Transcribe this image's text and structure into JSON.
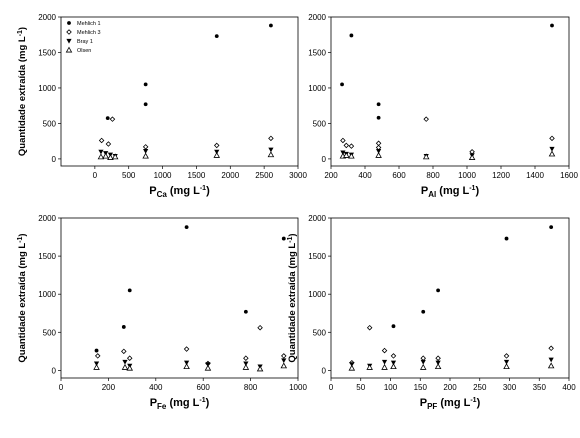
{
  "markers": {
    "Mehlich 1": "dot",
    "Mehlich 3": "diamond",
    "Bray 1": "triangle-down",
    "Olsen": "triangle-up"
  },
  "legend_entries": [
    "Mehlich 1",
    "Mehlich 3",
    "Bray 1",
    "Olsen"
  ],
  "chart_data": [
    {
      "type": "scatter",
      "panel": "top-left",
      "ylabel": "Quantidade extraída (mg L-1)",
      "ylabel_parts": {
        "main": "Quantidade extraída (mg L",
        "sup": "-1",
        "end": ")"
      },
      "xlabel": "PCa (mg L-1)",
      "xlabel_parts": {
        "p": "P",
        "sub": "Ca",
        "mid": " (mg L",
        "sup": "-1",
        "end": ")"
      },
      "xlim": [
        -500,
        3000
      ],
      "ylim": [
        -100,
        2000
      ],
      "xticks": [
        0,
        500,
        1000,
        1500,
        2000,
        2500,
        3000
      ],
      "yticks": [
        0,
        500,
        1000,
        1500,
        2000
      ],
      "legend": "top-left",
      "series": [
        {
          "name": "Mehlich 1",
          "points": [
            [
              190,
              575
            ],
            [
              750,
              1050
            ],
            [
              750,
              770
            ],
            [
              1800,
              1730
            ],
            [
              2600,
              1880
            ]
          ]
        },
        {
          "name": "Mehlich 3",
          "points": [
            [
              100,
              260
            ],
            [
              260,
              560
            ],
            [
              200,
              210
            ],
            [
              750,
              170
            ],
            [
              1800,
              190
            ],
            [
              2600,
              290
            ]
          ]
        },
        {
          "name": "Bray 1",
          "points": [
            [
              90,
              100
            ],
            [
              160,
              80
            ],
            [
              230,
              60
            ],
            [
              300,
              40
            ],
            [
              750,
              110
            ],
            [
              1800,
              100
            ],
            [
              2600,
              130
            ]
          ]
        },
        {
          "name": "Olsen",
          "points": [
            [
              90,
              30
            ],
            [
              160,
              40
            ],
            [
              230,
              20
            ],
            [
              300,
              30
            ],
            [
              750,
              40
            ],
            [
              1800,
              50
            ],
            [
              2600,
              60
            ]
          ]
        }
      ]
    },
    {
      "type": "scatter",
      "panel": "top-right",
      "xlabel": "PAl (mg L-1)",
      "xlabel_parts": {
        "p": "P",
        "sub": "Al",
        "mid": " (mg L",
        "sup": "-1",
        "end": ")"
      },
      "xlim": [
        200,
        1600
      ],
      "ylim": [
        -100,
        2000
      ],
      "xticks": [
        200,
        400,
        600,
        800,
        1000,
        1200,
        1400,
        1600
      ],
      "yticks": [
        0,
        500,
        1000,
        1500,
        2000
      ],
      "series": [
        {
          "name": "Mehlich 1",
          "points": [
            [
              265,
              1050
            ],
            [
              320,
              1740
            ],
            [
              480,
              770
            ],
            [
              480,
              580
            ],
            [
              1500,
              1880
            ]
          ]
        },
        {
          "name": "Mehlich 3",
          "points": [
            [
              270,
              260
            ],
            [
              290,
              190
            ],
            [
              320,
              180
            ],
            [
              480,
              220
            ],
            [
              480,
              160
            ],
            [
              760,
              560
            ],
            [
              1030,
              100
            ],
            [
              1500,
              290
            ]
          ]
        },
        {
          "name": "Bray 1",
          "points": [
            [
              270,
              90
            ],
            [
              290,
              70
            ],
            [
              320,
              60
            ],
            [
              480,
              110
            ],
            [
              760,
              40
            ],
            [
              1030,
              50
            ],
            [
              1500,
              140
            ]
          ]
        },
        {
          "name": "Olsen",
          "points": [
            [
              270,
              40
            ],
            [
              290,
              50
            ],
            [
              320,
              40
            ],
            [
              480,
              50
            ],
            [
              760,
              30
            ],
            [
              1030,
              20
            ],
            [
              1500,
              70
            ]
          ]
        }
      ]
    },
    {
      "type": "scatter",
      "panel": "bottom-left",
      "ylabel": "Quantidade extraída (mg L-1)",
      "ylabel_parts": {
        "main": "Quantidade extraída (mg L",
        "sup": "-1",
        "end": ")"
      },
      "xlabel": "PFe (mg L-1)",
      "xlabel_parts": {
        "p": "P",
        "sub": "Fe",
        "mid": " (mg L",
        "sup": "-1",
        "end": ")"
      },
      "xlim": [
        0,
        1000
      ],
      "ylim": [
        -100,
        2000
      ],
      "xticks": [
        0,
        200,
        400,
        600,
        800,
        1000
      ],
      "yticks": [
        0,
        500,
        1000,
        1500,
        2000
      ],
      "series": [
        {
          "name": "Mehlich 1",
          "points": [
            [
              150,
              260
            ],
            [
              265,
              570
            ],
            [
              290,
              1050
            ],
            [
              530,
              1880
            ],
            [
              780,
              770
            ],
            [
              940,
              1730
            ]
          ]
        },
        {
          "name": "Mehlich 3",
          "points": [
            [
              155,
              190
            ],
            [
              265,
              250
            ],
            [
              290,
              160
            ],
            [
              530,
              280
            ],
            [
              620,
              90
            ],
            [
              780,
              160
            ],
            [
              840,
              560
            ],
            [
              940,
              190
            ]
          ]
        },
        {
          "name": "Bray 1",
          "points": [
            [
              150,
              90
            ],
            [
              270,
              110
            ],
            [
              290,
              60
            ],
            [
              530,
              100
            ],
            [
              620,
              80
            ],
            [
              780,
              90
            ],
            [
              840,
              50
            ],
            [
              940,
              130
            ]
          ]
        },
        {
          "name": "Olsen",
          "points": [
            [
              150,
              40
            ],
            [
              270,
              40
            ],
            [
              290,
              30
            ],
            [
              530,
              50
            ],
            [
              620,
              30
            ],
            [
              780,
              40
            ],
            [
              840,
              20
            ],
            [
              940,
              60
            ]
          ]
        }
      ]
    },
    {
      "type": "scatter",
      "panel": "bottom-right",
      "ylabel": "Quantidade extraída (mg L-1)",
      "ylabel_parts": {
        "main": "Quantidade extraída (mg L",
        "sup": "-1",
        "end": ")"
      },
      "xlabel": "PPF (mg L-1)",
      "xlabel_parts": {
        "p": "P",
        "sub": "PF",
        "mid": " (mg L",
        "sup": "-1",
        "end": ")"
      },
      "xlim": [
        0,
        400
      ],
      "ylim": [
        -100,
        2000
      ],
      "xticks": [
        0,
        50,
        100,
        150,
        200,
        250,
        300,
        350,
        400
      ],
      "yticks": [
        0,
        500,
        1000,
        1500,
        2000
      ],
      "series": [
        {
          "name": "Mehlich 1",
          "points": [
            [
              105,
              580
            ],
            [
              155,
              770
            ],
            [
              180,
              1050
            ],
            [
              295,
              1730
            ],
            [
              370,
              1880
            ]
          ]
        },
        {
          "name": "Mehlich 3",
          "points": [
            [
              35,
              100
            ],
            [
              65,
              560
            ],
            [
              90,
              260
            ],
            [
              105,
              190
            ],
            [
              155,
              160
            ],
            [
              180,
              160
            ],
            [
              295,
              190
            ],
            [
              370,
              290
            ]
          ]
        },
        {
          "name": "Bray 1",
          "points": [
            [
              35,
              80
            ],
            [
              65,
              60
            ],
            [
              90,
              110
            ],
            [
              105,
              100
            ],
            [
              155,
              110
            ],
            [
              180,
              100
            ],
            [
              295,
              110
            ],
            [
              370,
              140
            ]
          ]
        },
        {
          "name": "Olsen",
          "points": [
            [
              35,
              30
            ],
            [
              65,
              40
            ],
            [
              90,
              40
            ],
            [
              105,
              50
            ],
            [
              155,
              40
            ],
            [
              180,
              50
            ],
            [
              295,
              50
            ],
            [
              370,
              60
            ]
          ]
        }
      ]
    }
  ]
}
